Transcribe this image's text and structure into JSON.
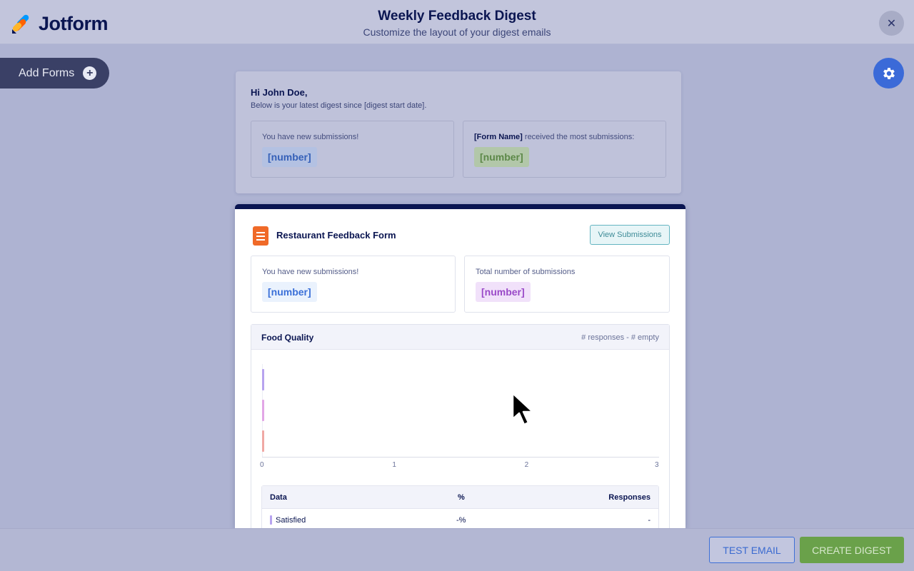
{
  "header": {
    "logo_text": "Jotform",
    "title": "Weekly Feedback Digest",
    "subtitle": "Customize the layout of your digest emails",
    "close_icon": "close-icon"
  },
  "sidebar": {
    "add_forms_label": "Add Forms",
    "plus_icon": "plus-icon"
  },
  "settings": {
    "icon": "gear-icon"
  },
  "greeting": {
    "hi": "Hi John Doe,",
    "subtitle": "Below is your latest digest since [digest start date].",
    "new_submissions_label": "You have new submissions!",
    "new_submissions_value": "[number]",
    "most_submissions_form": "[Form Name]",
    "most_submissions_label": " received the most submissions:",
    "most_submissions_value": "[number]"
  },
  "form_card": {
    "title": "Restaurant Feedback Form",
    "view_button": "View Submissions",
    "new_submissions_label": "You have new submissions!",
    "new_submissions_value": "[number]",
    "total_label": "Total number of submissions",
    "total_value": "[number]",
    "question": {
      "title": "Food Quality",
      "meta": "# responses - # empty"
    },
    "table": {
      "headers": [
        "Data",
        "%",
        "Responses"
      ],
      "rows": [
        {
          "data": "Satisfied",
          "percent": "-%",
          "responses": "-"
        }
      ]
    }
  },
  "chart_data": {
    "type": "bar",
    "orientation": "horizontal",
    "categories": [
      "",
      "",
      ""
    ],
    "values": [
      0,
      0,
      0
    ],
    "x_ticks": [
      "0",
      "1",
      "2",
      "3"
    ],
    "xlim": [
      0,
      3
    ],
    "colors": [
      "#b7a3ef",
      "#e2a6e6",
      "#f0a8a4"
    ]
  },
  "footer": {
    "test_email": "TEST EMAIL",
    "create_digest": "CREATE DIGEST"
  },
  "colors": {
    "navy": "#0a1551",
    "accent_blue": "#3b6ad8",
    "accent_green": "#6aa14a",
    "form_orange": "#f06a28"
  }
}
